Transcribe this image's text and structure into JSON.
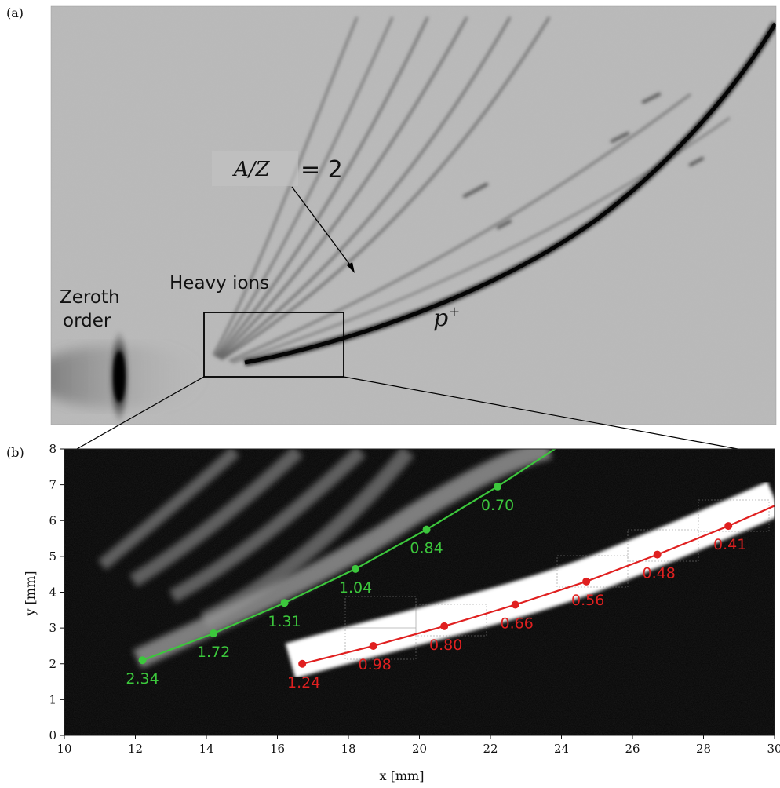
{
  "panel_a": {
    "label": "(a)",
    "annotations": {
      "az_label": "A/Z",
      "az_value": "= 2",
      "heavy_ions": "Heavy ions",
      "zeroth_line1": "Zeroth",
      "zeroth_line2": "order",
      "proton_base": "p",
      "proton_sup": "+"
    }
  },
  "panel_b": {
    "label": "(b)",
    "xlabel": "x [mm]",
    "ylabel": "y [mm]",
    "x_ticks": [
      "10",
      "12",
      "14",
      "16",
      "18",
      "20",
      "22",
      "24",
      "26",
      "28",
      "30"
    ],
    "y_ticks": [
      "0",
      "1",
      "2",
      "3",
      "4",
      "5",
      "6",
      "7",
      "8"
    ],
    "colors": {
      "green": "#3cc73c",
      "red": "#e02020"
    }
  },
  "chart_data": {
    "type": "scatter",
    "xlabel": "x [mm]",
    "ylabel": "y [mm]",
    "xlim": [
      10,
      30
    ],
    "ylim": [
      0,
      8
    ],
    "series": [
      {
        "color": "#3cc73c",
        "points": [
          {
            "x": 12.2,
            "y": 2.1,
            "label": "2.34"
          },
          {
            "x": 14.2,
            "y": 2.85,
            "label": "1.72"
          },
          {
            "x": 16.2,
            "y": 3.7,
            "label": "1.31"
          },
          {
            "x": 18.2,
            "y": 4.65,
            "label": "1.04"
          },
          {
            "x": 20.2,
            "y": 5.75,
            "label": "0.84"
          },
          {
            "x": 22.2,
            "y": 6.95,
            "label": "0.70"
          }
        ]
      },
      {
        "color": "#e02020",
        "points": [
          {
            "x": 16.7,
            "y": 2.0,
            "label": "1.24"
          },
          {
            "x": 18.7,
            "y": 2.5,
            "label": "0.98"
          },
          {
            "x": 20.7,
            "y": 3.05,
            "label": "0.80"
          },
          {
            "x": 22.7,
            "y": 3.65,
            "label": "0.66"
          },
          {
            "x": 24.7,
            "y": 4.3,
            "label": "0.56"
          },
          {
            "x": 26.7,
            "y": 5.05,
            "label": "0.48"
          },
          {
            "x": 28.7,
            "y": 5.85,
            "label": "0.41"
          }
        ]
      }
    ]
  }
}
